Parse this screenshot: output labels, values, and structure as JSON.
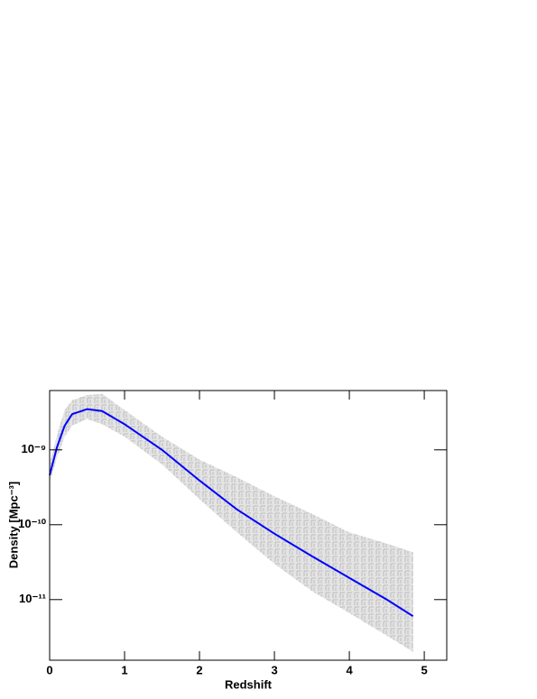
{
  "chart_data": {
    "type": "line",
    "x_label": "Redshift",
    "y_label": "Density [Mpc⁻³]",
    "x": [
      0,
      0.1,
      0.2,
      0.3,
      0.5,
      0.7,
      1.0,
      1.5,
      2.0,
      2.5,
      3.0,
      3.5,
      4.0,
      4.5,
      4.85
    ],
    "series": [
      {
        "color": "#0000ff",
        "values": [
          4.6e-10,
          1.1e-09,
          2.1e-09,
          3e-09,
          3.5e-09,
          3.3e-09,
          2.2e-09,
          1e-09,
          3.9e-10,
          1.6e-10,
          7.6e-11,
          3.8e-11,
          1.95e-11,
          1e-11,
          6e-12
        ]
      }
    ],
    "band": {
      "color": "#d9d9d9",
      "upper": [
        6.4e-10,
        1.6e-09,
        3.4e-09,
        4.6e-09,
        5.4e-09,
        5.6e-09,
        3.4e-09,
        1.5e-09,
        7.4e-10,
        4.3e-10,
        2.4e-10,
        1.4e-10,
        7.9e-11,
        5.6e-11,
        4.3e-11
      ],
      "lower": [
        3.7e-10,
        8e-10,
        1.5e-09,
        2.1e-09,
        2.6e-09,
        2.2e-09,
        1.5e-09,
        6.4e-10,
        2.2e-10,
        7.9e-11,
        3e-11,
        1.3e-11,
        6.6e-12,
        3.3e-12,
        2e-12
      ]
    },
    "xlim": [
      0,
      5.3
    ],
    "xticks": [
      0,
      1,
      2,
      3,
      4,
      5
    ],
    "ylim": [
      1.55e-12,
      6.2e-09
    ],
    "ylog": true,
    "yticks": [
      {
        "value": 1e-11,
        "label": "10⁻¹¹"
      },
      {
        "value": 1e-10,
        "label": "10⁻¹⁰"
      },
      {
        "value": 1e-09,
        "label": "10⁻⁹"
      }
    ]
  }
}
